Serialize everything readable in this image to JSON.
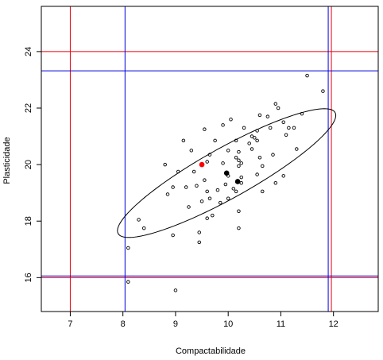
{
  "chart_data": {
    "type": "scatter",
    "xlabel": "Compactabilidade",
    "ylabel": "Plasticidade",
    "xlim": [
      6.45,
      12.85
    ],
    "ylim": [
      14.8,
      25.6
    ],
    "x_ticks": [
      7,
      8,
      9,
      10,
      11,
      12
    ],
    "y_ticks": [
      16,
      18,
      20,
      22,
      24
    ],
    "grid": false,
    "points": [
      [
        8.1,
        17.05
      ],
      [
        8.1,
        15.85
      ],
      [
        8.3,
        18.05
      ],
      [
        8.4,
        17.75
      ],
      [
        8.8,
        20.0
      ],
      [
        8.85,
        18.95
      ],
      [
        8.95,
        17.5
      ],
      [
        8.95,
        19.2
      ],
      [
        9.0,
        15.55
      ],
      [
        9.05,
        19.75
      ],
      [
        9.15,
        20.85
      ],
      [
        9.2,
        19.2
      ],
      [
        9.25,
        18.5
      ],
      [
        9.3,
        20.5
      ],
      [
        9.35,
        19.75
      ],
      [
        9.4,
        19.25
      ],
      [
        9.45,
        17.25
      ],
      [
        9.45,
        17.6
      ],
      [
        9.5,
        18.7
      ],
      [
        9.55,
        19.45
      ],
      [
        9.55,
        21.25
      ],
      [
        9.6,
        18.1
      ],
      [
        9.6,
        20.1
      ],
      [
        9.6,
        19.05
      ],
      [
        9.65,
        20.35
      ],
      [
        9.65,
        18.8
      ],
      [
        9.7,
        18.2
      ],
      [
        9.75,
        20.85
      ],
      [
        9.8,
        19.1
      ],
      [
        9.85,
        18.65
      ],
      [
        9.9,
        21.4
      ],
      [
        9.9,
        20.05
      ],
      [
        9.95,
        19.3
      ],
      [
        10.0,
        20.5
      ],
      [
        10.0,
        19.6
      ],
      [
        10.0,
        18.8
      ],
      [
        10.05,
        21.6
      ],
      [
        10.1,
        19.15
      ],
      [
        10.15,
        20.85
      ],
      [
        10.15,
        20.25
      ],
      [
        10.15,
        19.05
      ],
      [
        10.2,
        20.45
      ],
      [
        10.2,
        20.15
      ],
      [
        10.2,
        19.95
      ],
      [
        10.2,
        18.35
      ],
      [
        10.2,
        17.75
      ],
      [
        10.25,
        20.05
      ],
      [
        10.25,
        19.55
      ],
      [
        10.25,
        19.35
      ],
      [
        10.3,
        21.3
      ],
      [
        10.4,
        20.75
      ],
      [
        10.45,
        21.0
      ],
      [
        10.45,
        20.55
      ],
      [
        10.5,
        20.95
      ],
      [
        10.55,
        21.2
      ],
      [
        10.55,
        20.85
      ],
      [
        10.55,
        19.65
      ],
      [
        10.6,
        21.75
      ],
      [
        10.6,
        20.25
      ],
      [
        10.65,
        19.95
      ],
      [
        10.65,
        19.05
      ],
      [
        10.75,
        21.7
      ],
      [
        10.8,
        21.3
      ],
      [
        10.85,
        20.35
      ],
      [
        10.9,
        22.15
      ],
      [
        10.9,
        19.35
      ],
      [
        10.95,
        22.0
      ],
      [
        11.05,
        21.5
      ],
      [
        11.05,
        19.6
      ],
      [
        11.1,
        21.05
      ],
      [
        11.15,
        21.3
      ],
      [
        11.25,
        21.3
      ],
      [
        11.3,
        20.55
      ],
      [
        11.4,
        21.8
      ],
      [
        11.5,
        23.15
      ],
      [
        11.8,
        22.6
      ]
    ],
    "highlight_points": [
      {
        "x": 9.5,
        "y": 20.0,
        "color": "#ff0000"
      },
      {
        "x": 9.97,
        "y": 19.7,
        "color": "#000000"
      },
      {
        "x": 10.18,
        "y": 19.4,
        "color": "#000000"
      }
    ],
    "ellipse": {
      "center": [
        9.97,
        19.7
      ],
      "semi_major": 3.0,
      "semi_minor": 0.7,
      "angle_deg": 48,
      "color": "#000000"
    },
    "reference_lines": {
      "red": {
        "color": "#e8000b",
        "vertical": [
          7.0,
          11.96
        ],
        "horizontal": [
          24.0,
          16.0
        ]
      },
      "blue": {
        "color": "#0000dd",
        "vertical": [
          8.04,
          11.9
        ],
        "horizontal": [
          23.32,
          16.06
        ]
      }
    }
  }
}
